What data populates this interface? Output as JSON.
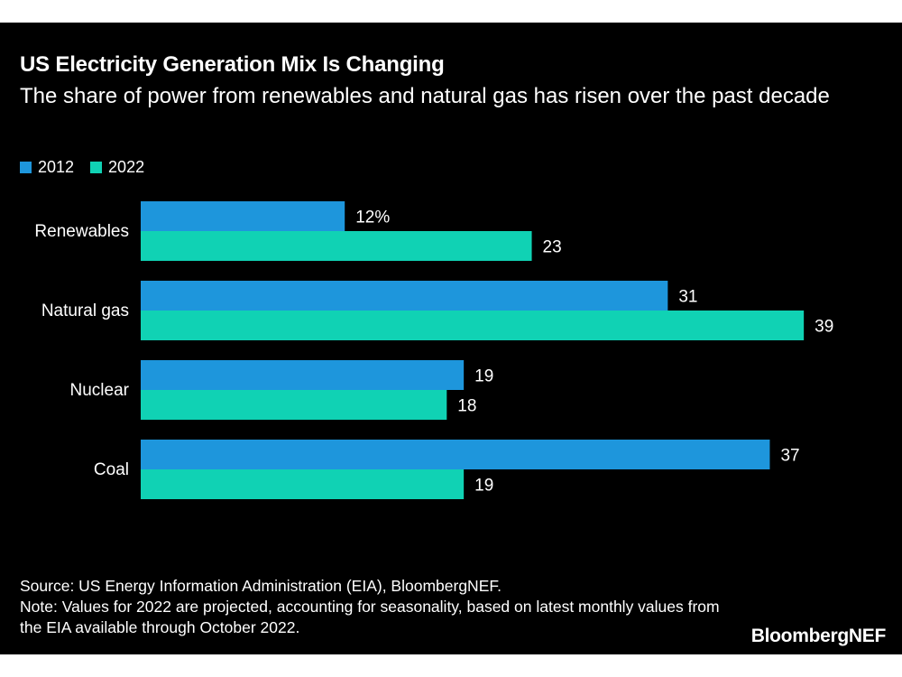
{
  "title": "US Electricity Generation Mix Is Changing",
  "subtitle": "The share of power from renewables and natural gas has risen over the past decade",
  "source": "Source: US Energy Information Administration (EIA), BloombergNEF.",
  "note": "Note: Values for 2022 are projected, accounting for seasonality, based on latest monthly values from the EIA available through October 2022.",
  "brand": "BloombergNEF",
  "colors": {
    "background": "#000000",
    "text": "#ffffff",
    "series_2012": "#1e96dc",
    "series_2022": "#10d2b4"
  },
  "chart_data": {
    "type": "bar",
    "orientation": "horizontal",
    "title": "US Electricity Generation Mix Is Changing",
    "subtitle": "The share of power from renewables and natural gas has risen over the past decade",
    "categories": [
      "Renewables",
      "Natural gas",
      "Nuclear",
      "Coal"
    ],
    "series": [
      {
        "name": "2012",
        "values": [
          12,
          31,
          19,
          37
        ],
        "color": "#1e96dc"
      },
      {
        "name": "2022",
        "values": [
          23,
          39,
          18,
          19
        ],
        "color": "#10d2b4"
      }
    ],
    "data_labels": [
      [
        "12%",
        "31",
        "19",
        "37"
      ],
      [
        "23",
        "39",
        "18",
        "19"
      ]
    ],
    "xlim": [
      0,
      39
    ],
    "legend": "top-left",
    "grid": false,
    "axis_lines": false
  }
}
